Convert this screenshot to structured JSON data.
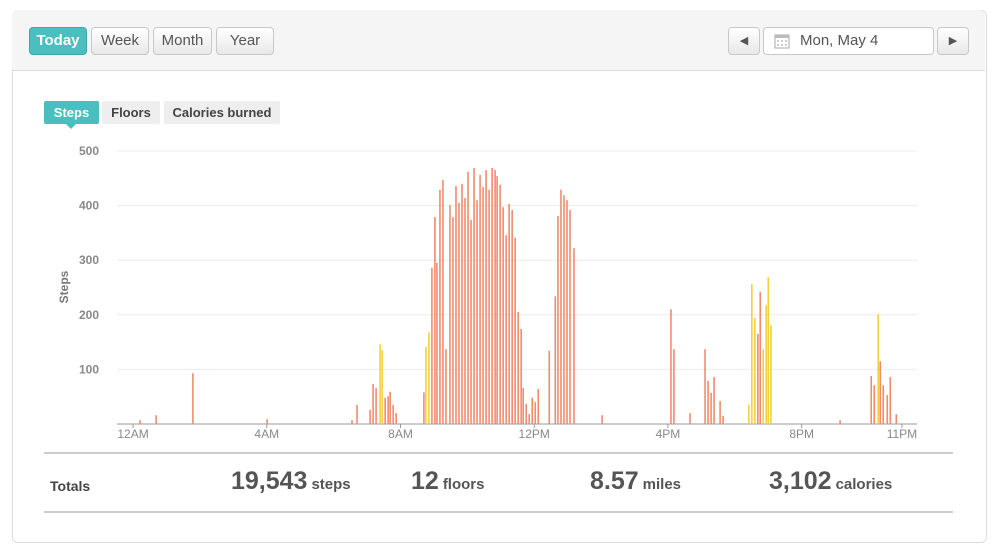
{
  "toolbar": {
    "ranges": [
      "Today",
      "Week",
      "Month",
      "Year"
    ],
    "active_range": "Today",
    "date": "Mon, May 4"
  },
  "tabs": [
    "Steps",
    "Floors",
    "Calories burned"
  ],
  "active_tab": "Steps",
  "chart_data": {
    "type": "bar",
    "y_label": "Steps",
    "x": [
      0.21,
      0.69,
      1.79,
      4.01,
      6.55,
      6.7,
      7.09,
      7.18,
      7.27,
      7.39,
      7.45,
      7.54,
      7.63,
      7.69,
      7.78,
      7.87,
      8.7,
      8.76,
      8.85,
      8.94,
      9.03,
      9.09,
      9.18,
      9.27,
      9.36,
      9.48,
      9.57,
      9.66,
      9.75,
      9.84,
      9.93,
      10.02,
      10.11,
      10.2,
      10.29,
      10.38,
      10.47,
      10.56,
      10.65,
      10.74,
      10.83,
      10.89,
      10.98,
      11.07,
      11.16,
      11.25,
      11.34,
      11.43,
      11.52,
      11.61,
      11.67,
      11.76,
      11.85,
      11.94,
      12.03,
      12.12,
      12.45,
      12.63,
      12.71,
      12.8,
      12.89,
      12.98,
      13.07,
      13.19,
      14.03,
      16.09,
      16.18,
      16.66,
      17.11,
      17.2,
      17.29,
      17.38,
      17.56,
      17.65,
      18.42,
      18.51,
      18.6,
      18.69,
      18.76,
      18.85,
      18.94,
      19.0,
      19.08,
      21.15,
      22.08,
      22.17,
      22.29,
      22.35,
      22.44,
      22.56,
      22.65,
      22.83
    ],
    "values": [
      7,
      16,
      93,
      9,
      7,
      35,
      26,
      73,
      66,
      146,
      135,
      48,
      51,
      59,
      35,
      20,
      58,
      141,
      168,
      286,
      379,
      295,
      429,
      447,
      137,
      401,
      379,
      436,
      405,
      440,
      414,
      462,
      374,
      469,
      410,
      456,
      434,
      465,
      429,
      469,
      465,
      454,
      438,
      397,
      346,
      403,
      392,
      341,
      205,
      174,
      66,
      37,
      18,
      48,
      40,
      64,
      134,
      234,
      381,
      429,
      419,
      410,
      392,
      322,
      16,
      210,
      137,
      20,
      137,
      79,
      57,
      86,
      42,
      15,
      35,
      256,
      194,
      165,
      242,
      137,
      218,
      269,
      181,
      7,
      88,
      71,
      201,
      115,
      71,
      53,
      86,
      18
    ],
    "colors": [
      "#f28b6e",
      "#f28b6e",
      "#f28b6e",
      "#f28b6e",
      "#f28b6e",
      "#f28b6e",
      "#f28b6e",
      "#f28b6e",
      "#f28b6e",
      "#f5cf3c",
      "#f5cf3c",
      "#f28b6e",
      "#f28b6e",
      "#f28b6e",
      "#f28b6e",
      "#f28b6e",
      "#f28b6e",
      "#f5cf3c",
      "#f5cf3c",
      "#f28b6e",
      "#f28b6e",
      "#f28b6e",
      "#f28b6e",
      "#f28b6e",
      "#f28b6e",
      "#f28b6e",
      "#f28b6e",
      "#f28b6e",
      "#f28b6e",
      "#f28b6e",
      "#f28b6e",
      "#f28b6e",
      "#f28b6e",
      "#f28b6e",
      "#f28b6e",
      "#f28b6e",
      "#f28b6e",
      "#f28b6e",
      "#f28b6e",
      "#f28b6e",
      "#f28b6e",
      "#f28b6e",
      "#f28b6e",
      "#f28b6e",
      "#f28b6e",
      "#f28b6e",
      "#f28b6e",
      "#f28b6e",
      "#f28b6e",
      "#f28b6e",
      "#f28b6e",
      "#f28b6e",
      "#f28b6e",
      "#f28b6e",
      "#f28b6e",
      "#f28b6e",
      "#f28b6e",
      "#f28b6e",
      "#f28b6e",
      "#f28b6e",
      "#f28b6e",
      "#f28b6e",
      "#f28b6e",
      "#f28b6e",
      "#f28b6e",
      "#f28b6e",
      "#f28b6e",
      "#f28b6e",
      "#f28b6e",
      "#f28b6e",
      "#f28b6e",
      "#f28b6e",
      "#f28b6e",
      "#f28b6e",
      "#f5cf3c",
      "#f5cf3c",
      "#f5cf3c",
      "#f28b6e",
      "#f28b6e",
      "#f5cf3c",
      "#f5cf3c",
      "#f5cf3c",
      "#f5cf3c",
      "#f28b6e",
      "#f28b6e",
      "#f28b6e",
      "#f5cf3c",
      "#f28b6e",
      "#f28b6e",
      "#f28b6e",
      "#f28b6e",
      "#f28b6e"
    ],
    "xlim": [
      -0.48,
      23.45
    ],
    "xticks": [
      {
        "value": 0,
        "label": "12AM"
      },
      {
        "value": 4,
        "label": "4AM"
      },
      {
        "value": 8,
        "label": "8AM"
      },
      {
        "value": 12,
        "label": "12PM"
      },
      {
        "value": 16,
        "label": "4PM"
      },
      {
        "value": 20,
        "label": "8PM"
      },
      {
        "value": 23,
        "label": "11PM"
      }
    ],
    "ylim": [
      0,
      500
    ],
    "yticks": [
      100,
      200,
      300,
      400,
      500
    ],
    "grid": true
  },
  "totals": {
    "label": "Totals",
    "items": [
      {
        "value": "19,543",
        "unit": "steps"
      },
      {
        "value": "12",
        "unit": "floors"
      },
      {
        "value": "8.57",
        "unit": "miles"
      },
      {
        "value": "3,102",
        "unit": "calories"
      }
    ]
  }
}
